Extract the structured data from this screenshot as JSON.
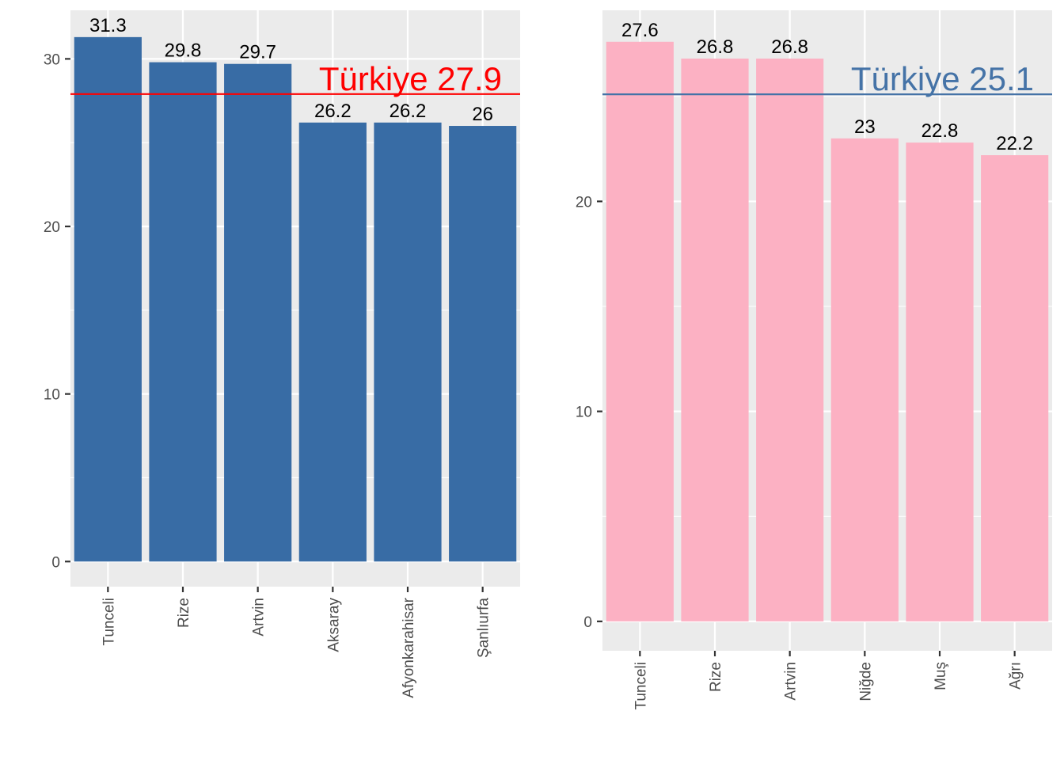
{
  "chart_data": [
    {
      "type": "bar",
      "categories": [
        "Tunceli",
        "Rize",
        "Artvin",
        "Aksaray",
        "Afyonkarahisar",
        "Şanlıurfa"
      ],
      "values": [
        31.3,
        29.8,
        29.7,
        26.2,
        26.2,
        26
      ],
      "value_labels": [
        "31.3",
        "29.8",
        "29.7",
        "26.2",
        "26.2",
        "26"
      ],
      "bar_color": "#386CA5",
      "yticks": [
        0,
        10,
        20,
        30
      ],
      "ylim": [
        -1.5,
        32.9
      ],
      "grid": true,
      "reference_line": {
        "value": 27.9,
        "label": "Türkiye 27.9",
        "color": "#FF0000"
      }
    },
    {
      "type": "bar",
      "categories": [
        "Tunceli",
        "Rize",
        "Artvin",
        "Niğde",
        "Muş",
        "Ağrı"
      ],
      "values": [
        27.6,
        26.8,
        26.8,
        23,
        22.8,
        22.2
      ],
      "value_labels": [
        "27.6",
        "26.8",
        "26.8",
        "23",
        "22.8",
        "22.2"
      ],
      "bar_color": "#FCB1C3",
      "yticks": [
        0,
        10,
        20
      ],
      "ylim": [
        -1.4,
        29.1
      ],
      "grid": true,
      "reference_line": {
        "value": 25.1,
        "label": "Türkiye 25.1",
        "color": "#4573A7"
      }
    }
  ]
}
